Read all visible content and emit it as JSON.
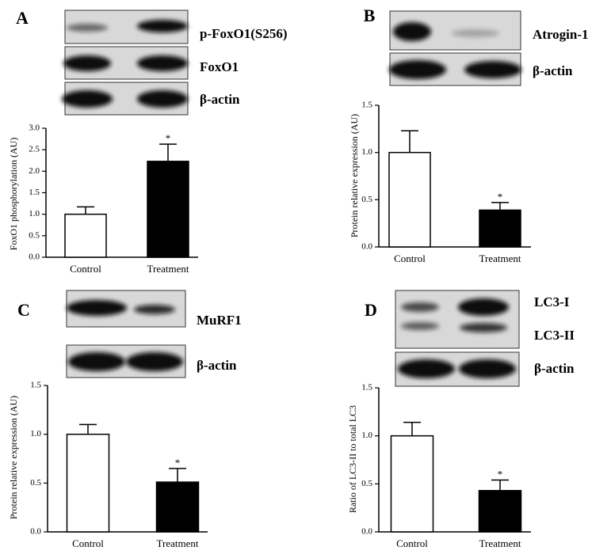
{
  "chart_data": [
    {
      "type": "bar",
      "panel_label": "A",
      "blot_labels": [
        "p-FoxO1(S256)",
        "FoxO1",
        "β-actin"
      ],
      "ylabel": "FoxO1 phosphorylation (AU)",
      "categories": [
        "Control",
        "Treatment"
      ],
      "values": [
        1.0,
        2.23
      ],
      "errors": [
        0.17,
        0.4
      ],
      "colors": [
        "#ffffff",
        "#000000"
      ],
      "significance": [
        null,
        "*"
      ],
      "ylim": [
        0,
        3
      ],
      "yticks": [
        {
          "value": 0,
          "label": "0.0"
        },
        0.5,
        {
          "value": 1,
          "label": "1.0"
        },
        1.5,
        {
          "value": 2,
          "label": "2.0"
        },
        2.5,
        {
          "value": 3,
          "label": "3.0"
        }
      ]
    },
    {
      "type": "bar",
      "panel_label": "B",
      "blot_labels": [
        "Atrogin-1",
        "β-actin"
      ],
      "ylabel": "Protein relative expression (AU)",
      "categories": [
        "Control",
        "Treatment"
      ],
      "values": [
        1.0,
        0.39
      ],
      "errors": [
        0.23,
        0.08
      ],
      "colors": [
        "#ffffff",
        "#000000"
      ],
      "significance": [
        null,
        "*"
      ],
      "ylim": [
        0,
        1.5
      ],
      "yticks": [
        {
          "value": 0,
          "label": "0.0"
        },
        0.5,
        {
          "value": 1,
          "label": "1.0"
        },
        1.5
      ]
    },
    {
      "type": "bar",
      "panel_label": "C",
      "blot_labels": [
        "MuRF1",
        "β-actin"
      ],
      "ylabel": "Protein relative expression (AU)",
      "categories": [
        "Control",
        "Treatment"
      ],
      "values": [
        1.0,
        0.51
      ],
      "errors": [
        0.1,
        0.14
      ],
      "colors": [
        "#ffffff",
        "#000000"
      ],
      "significance": [
        null,
        "*"
      ],
      "ylim": [
        0,
        1.5
      ],
      "yticks": [
        {
          "value": 0,
          "label": "0.0"
        },
        0.5,
        {
          "value": 1,
          "label": "1.0"
        },
        1.5
      ]
    },
    {
      "type": "bar",
      "panel_label": "D",
      "blot_labels": [
        "LC3-I",
        "LC3-II",
        "β-actin"
      ],
      "ylabel": "Ratio of LC3-II to total LC3",
      "categories": [
        "Control",
        "Treatment"
      ],
      "values": [
        1.0,
        0.43
      ],
      "errors": [
        0.14,
        0.11
      ],
      "colors": [
        "#ffffff",
        "#000000"
      ],
      "significance": [
        null,
        "*"
      ],
      "ylim": [
        0,
        1.5
      ],
      "yticks": [
        {
          "value": 0,
          "label": "0.0"
        },
        0.5,
        {
          "value": 1,
          "label": "1.0"
        },
        1.5
      ]
    }
  ]
}
